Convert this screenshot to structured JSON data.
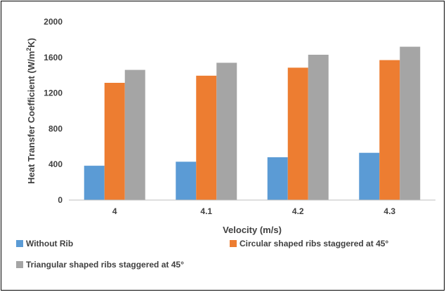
{
  "chart_data": {
    "type": "bar",
    "categories": [
      "4",
      "4.1",
      "4.2",
      "4.3"
    ],
    "series": [
      {
        "name": "Without Rib",
        "values": [
          385,
          430,
          480,
          530
        ],
        "color": "#5B9BD5"
      },
      {
        "name": "Circular shaped ribs staggered at 45°",
        "values": [
          1315,
          1395,
          1485,
          1570
        ],
        "color": "#ED7D31"
      },
      {
        "name": "Triangular shaped ribs staggered at 45°",
        "values": [
          1460,
          1540,
          1630,
          1720
        ],
        "color": "#A5A5A5"
      }
    ],
    "xlabel": "Velocity (m/s)",
    "ylabel_main": "Heat Transfer Coefficient (W/m",
    "ylabel_sup": "2",
    "ylabel_end": "K)",
    "ylim": [
      0,
      2000
    ],
    "yticks": [
      "0",
      "400",
      "800",
      "1200",
      "1600",
      "2000"
    ],
    "grid": false,
    "legend_position": "bottom"
  }
}
